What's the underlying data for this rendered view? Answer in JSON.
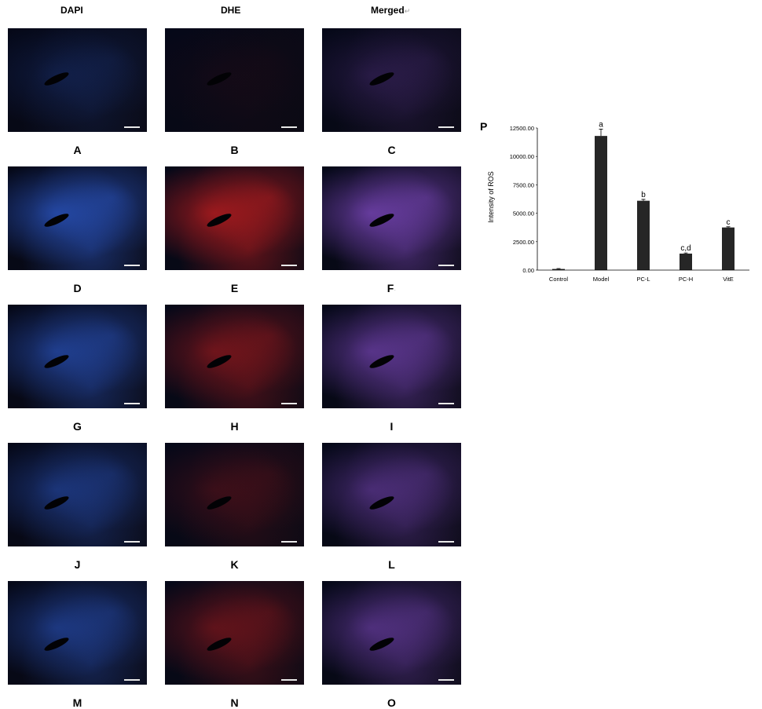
{
  "columns": [
    "DAPI",
    "DHE",
    "Merged"
  ],
  "merged_mark": "↵",
  "panels": [
    {
      "label": "A",
      "intensity": 0.25
    },
    {
      "label": "B",
      "intensity": 0.05
    },
    {
      "label": "C",
      "intensity": 0.25
    },
    {
      "label": "D",
      "intensity": 0.85
    },
    {
      "label": "E",
      "intensity": 0.85
    },
    {
      "label": "F",
      "intensity": 0.85,
      "mark": "·"
    },
    {
      "label": "G",
      "intensity": 0.7
    },
    {
      "label": "H",
      "intensity": 0.55
    },
    {
      "label": "I",
      "intensity": 0.7
    },
    {
      "label": "J",
      "intensity": 0.55
    },
    {
      "label": "K",
      "intensity": 0.25
    },
    {
      "label": "L",
      "intensity": 0.55
    },
    {
      "label": "M",
      "intensity": 0.6
    },
    {
      "label": "N",
      "intensity": 0.45
    },
    {
      "label": "O",
      "intensity": 0.6
    }
  ],
  "colors": {
    "dapi": "#2f5fd8",
    "dhe": "#d42020",
    "merged": "#8a4fd0",
    "bar": "#262626"
  },
  "chart_data": {
    "type": "bar",
    "panel_label": "P",
    "title": "",
    "xlabel": "",
    "ylabel": "Intensity of ROS",
    "categories": [
      "Control",
      "Model",
      "PC-L",
      "PC-H",
      "VitE"
    ],
    "values": [
      100,
      11800,
      6100,
      1450,
      3750
    ],
    "errors": [
      40,
      600,
      120,
      60,
      60
    ],
    "annotations": [
      "",
      "a",
      "b",
      "c,d",
      "c"
    ],
    "ylim": [
      0,
      12500
    ],
    "yticks": [
      "0.00",
      "2500.00",
      "5000.00",
      "7500.00",
      "10000.00",
      "12500.00"
    ],
    "ytick_values": [
      0,
      2500,
      5000,
      7500,
      10000,
      12500
    ],
    "grid": false,
    "legend": "none"
  }
}
